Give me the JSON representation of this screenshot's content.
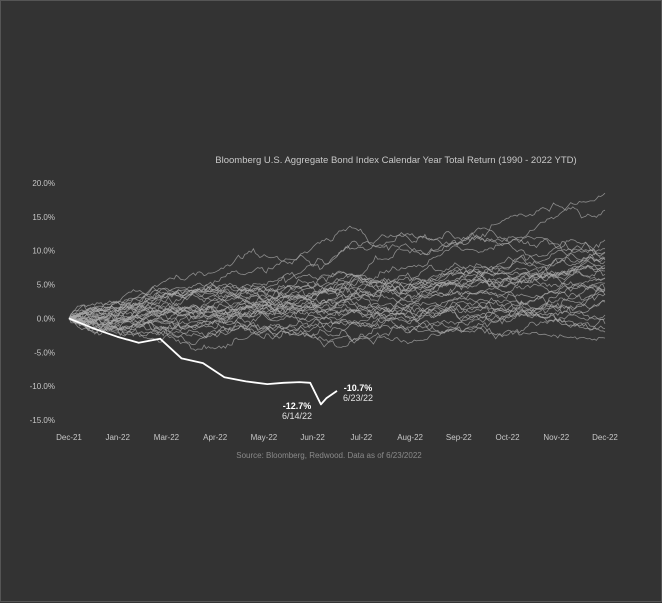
{
  "chart_data": {
    "type": "line",
    "title": "Bloomberg U.S. Aggregate Bond Index Calendar Year Total Return (1990 - 2022 YTD)",
    "source": "Source: Bloomberg, Redwood. Data as of 6/23/2022",
    "xlabel": "",
    "ylabel": "",
    "x_ticks": [
      "Dec-21",
      "Jan-22",
      "Mar-22",
      "Apr-22",
      "May-22",
      "Jun-22",
      "Jul-22",
      "Aug-22",
      "Sep-22",
      "Oct-22",
      "Nov-22",
      "Dec-22"
    ],
    "y_ticks": [
      "20.0%",
      "15.0%",
      "10.0%",
      "5.0%",
      "0.0%",
      "-5.0%",
      "-10.0%",
      "-15.0%"
    ],
    "ylim": [
      -15,
      20
    ],
    "grid": false,
    "colors": {
      "background": "#333333",
      "history": "#aaaaaa",
      "current": "#ffffff"
    },
    "history_year_end_returns": [
      9.0,
      16.0,
      7.4,
      9.8,
      -2.9,
      18.5,
      3.6,
      9.7,
      8.7,
      -0.8,
      11.6,
      8.4,
      10.3,
      4.1,
      4.3,
      2.4,
      4.3,
      7.0,
      5.2,
      5.9,
      6.5,
      7.8,
      4.2,
      -2.0,
      6.0,
      0.5,
      2.6,
      3.5,
      0.0,
      8.7,
      7.5,
      -1.5
    ],
    "current": {
      "name": "2022 YTD",
      "points": [
        [
          0.0,
          0.0
        ],
        [
          0.05,
          -1.6
        ],
        [
          0.09,
          -2.7
        ],
        [
          0.13,
          -3.6
        ],
        [
          0.17,
          -3.0
        ],
        [
          0.21,
          -5.9
        ],
        [
          0.25,
          -6.6
        ],
        [
          0.29,
          -8.7
        ],
        [
          0.33,
          -9.3
        ],
        [
          0.37,
          -9.7
        ],
        [
          0.4,
          -9.5
        ],
        [
          0.43,
          -9.4
        ],
        [
          0.45,
          -9.5
        ],
        [
          0.47,
          -12.7
        ],
        [
          0.48,
          -11.8
        ],
        [
          0.5,
          -10.7
        ]
      ]
    },
    "annotations": [
      {
        "value": "-12.7%",
        "date": "6/14/22"
      },
      {
        "value": "-10.7%",
        "date": "6/23/22"
      }
    ]
  }
}
